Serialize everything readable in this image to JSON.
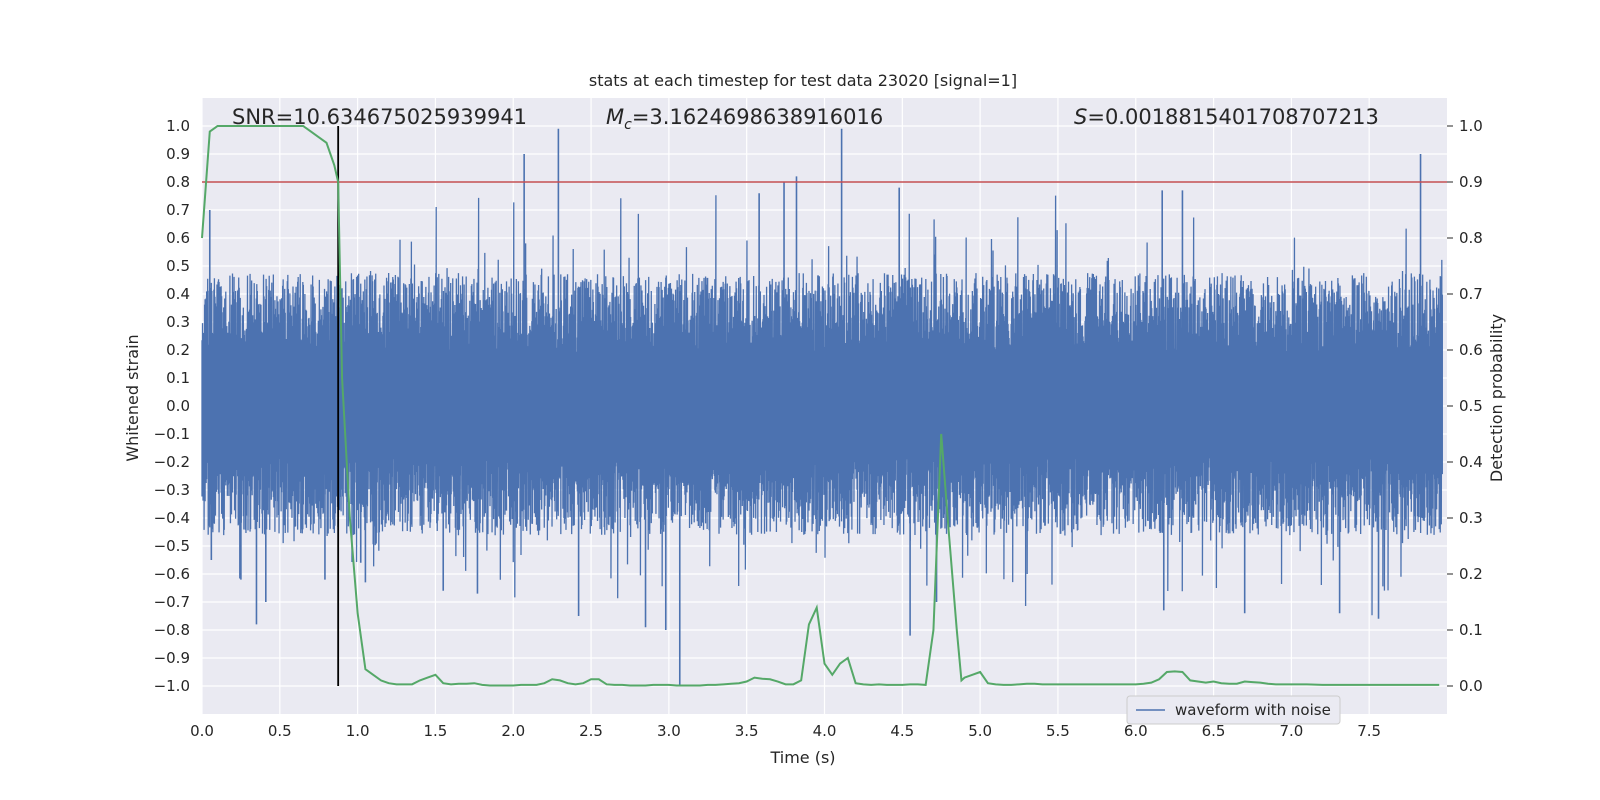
{
  "chart_data": {
    "type": "line",
    "title": "stats at each timestep for test data 23020 [signal=1]",
    "xlabel": "Time (s)",
    "ylabel": "Whitened strain",
    "y2label": "Detection probability",
    "xlim": [
      0.0,
      8.0
    ],
    "ylim": [
      -1.1,
      1.1
    ],
    "y2lim": [
      -0.05,
      1.05
    ],
    "xticks": [
      0.0,
      0.5,
      1.0,
      1.5,
      2.0,
      2.5,
      3.0,
      3.5,
      4.0,
      4.5,
      5.0,
      5.5,
      6.0,
      6.5,
      7.0,
      7.5
    ],
    "xtick_labels": [
      "0.0",
      "0.5",
      "1.0",
      "1.5",
      "2.0",
      "2.5",
      "3.0",
      "3.5",
      "4.0",
      "4.5",
      "5.0",
      "5.5",
      "6.0",
      "6.5",
      "7.0",
      "7.5"
    ],
    "yticks": [
      1.0,
      0.9,
      0.8,
      0.7,
      0.6,
      0.5,
      0.4,
      0.3,
      0.2,
      0.1,
      0.0,
      -0.1,
      -0.2,
      -0.3,
      -0.4,
      -0.5,
      -0.6,
      -0.7,
      -0.8,
      -0.9,
      -1.0
    ],
    "ytick_labels": [
      "1.0",
      "0.9",
      "0.8",
      "0.7",
      "0.6",
      "0.5",
      "0.4",
      "0.3",
      "0.2",
      "0.1",
      "0.0",
      "−0.1",
      "−0.2",
      "−0.3",
      "−0.4",
      "−0.5",
      "−0.6",
      "−0.7",
      "−0.8",
      "−0.9",
      "−1.0"
    ],
    "y2ticks": [
      1.0,
      0.9,
      0.8,
      0.7,
      0.6,
      0.5,
      0.4,
      0.3,
      0.2,
      0.1,
      0.0
    ],
    "y2tick_labels": [
      "1.0",
      "0.9",
      "0.8",
      "0.7",
      "0.6",
      "0.5",
      "0.4",
      "0.3",
      "0.2",
      "0.1",
      "0.0"
    ],
    "annotations": {
      "snr": "SNR=10.634675025939941",
      "mc_symbol": "M",
      "mc_subscript": "c",
      "mc_value": "=3.1624698638916016",
      "s_symbol": "S",
      "s_value": "=0.0018815401708707213"
    },
    "threshold": {
      "y2": 0.9,
      "color": "#c44e52"
    },
    "marker_line": {
      "x": 0.875,
      "y_range": [
        -1.0,
        1.0
      ],
      "color": "#000000"
    },
    "waveform": {
      "name": "waveform with noise",
      "color": "#4c72b0",
      "samples": 2400,
      "envelope_pos": 0.38,
      "envelope_neg": -0.37,
      "spikes": [
        {
          "x": 0.05,
          "y": 0.7
        },
        {
          "x": 0.06,
          "y": -0.55
        },
        {
          "x": 0.25,
          "y": -0.62
        },
        {
          "x": 0.35,
          "y": -0.78
        },
        {
          "x": 0.41,
          "y": -0.7
        },
        {
          "x": 0.79,
          "y": -0.62
        },
        {
          "x": 1.05,
          "y": -0.63
        },
        {
          "x": 1.55,
          "y": -0.66
        },
        {
          "x": 1.77,
          "y": -0.67
        },
        {
          "x": 2.07,
          "y": 0.9
        },
        {
          "x": 2.29,
          "y": 0.99
        },
        {
          "x": 2.42,
          "y": -0.75
        },
        {
          "x": 2.85,
          "y": -0.79
        },
        {
          "x": 2.98,
          "y": -0.8
        },
        {
          "x": 3.07,
          "y": -1.0
        },
        {
          "x": 3.58,
          "y": 0.76
        },
        {
          "x": 3.74,
          "y": 0.8
        },
        {
          "x": 3.82,
          "y": 0.82
        },
        {
          "x": 4.11,
          "y": 0.99
        },
        {
          "x": 4.48,
          "y": 0.78
        },
        {
          "x": 4.55,
          "y": -0.82
        },
        {
          "x": 4.72,
          "y": -0.7
        },
        {
          "x": 6.17,
          "y": 0.77
        },
        {
          "x": 6.3,
          "y": 0.77
        },
        {
          "x": 6.18,
          "y": -0.73
        },
        {
          "x": 6.7,
          "y": -0.74
        },
        {
          "x": 7.31,
          "y": -0.74
        },
        {
          "x": 7.56,
          "y": -0.76
        },
        {
          "x": 7.83,
          "y": 0.9
        },
        {
          "x": 1.02,
          "y": -0.56
        }
      ]
    },
    "probability": {
      "name": "detection probability",
      "color": "#55a868",
      "x": [
        0.0,
        0.05,
        0.1,
        0.15,
        0.2,
        0.25,
        0.3,
        0.35,
        0.4,
        0.45,
        0.5,
        0.55,
        0.6,
        0.65,
        0.7,
        0.75,
        0.8,
        0.85,
        0.875,
        0.9,
        0.95,
        1.0,
        1.05,
        1.1,
        1.15,
        1.2,
        1.25,
        1.3,
        1.35,
        1.4,
        1.45,
        1.5,
        1.55,
        1.6,
        1.65,
        1.7,
        1.75,
        1.8,
        1.85,
        1.9,
        1.95,
        2.0,
        2.05,
        2.1,
        2.15,
        2.2,
        2.25,
        2.3,
        2.35,
        2.4,
        2.45,
        2.5,
        2.55,
        2.6,
        2.65,
        2.7,
        2.75,
        2.8,
        2.85,
        2.9,
        2.95,
        3.0,
        3.05,
        3.1,
        3.15,
        3.2,
        3.25,
        3.3,
        3.35,
        3.4,
        3.45,
        3.5,
        3.55,
        3.6,
        3.65,
        3.7,
        3.75,
        3.8,
        3.85,
        3.9,
        3.95,
        4.0,
        4.05,
        4.1,
        4.15,
        4.2,
        4.25,
        4.3,
        4.35,
        4.4,
        4.45,
        4.5,
        4.55,
        4.6,
        4.65,
        4.7,
        4.75,
        4.8,
        4.85,
        4.88,
        4.9,
        4.95,
        5.0,
        5.05,
        5.1,
        5.15,
        5.2,
        5.25,
        5.3,
        5.35,
        5.4,
        5.45,
        5.5,
        5.6,
        5.7,
        5.8,
        5.9,
        6.0,
        6.05,
        6.1,
        6.15,
        6.2,
        6.25,
        6.3,
        6.35,
        6.4,
        6.45,
        6.5,
        6.55,
        6.6,
        6.65,
        6.7,
        6.75,
        6.8,
        6.85,
        6.9,
        6.95,
        7.0,
        7.1,
        7.2,
        7.3,
        7.4,
        7.5,
        7.6,
        7.7,
        7.8,
        7.95
      ],
      "y": [
        0.8,
        0.99,
        1.0,
        1.0,
        1.0,
        1.0,
        1.0,
        1.0,
        1.0,
        1.0,
        1.0,
        1.0,
        1.0,
        1.0,
        0.99,
        0.98,
        0.97,
        0.93,
        0.9,
        0.55,
        0.3,
        0.13,
        0.03,
        0.02,
        0.01,
        0.005,
        0.003,
        0.003,
        0.003,
        0.01,
        0.015,
        0.02,
        0.005,
        0.003,
        0.004,
        0.004,
        0.005,
        0.002,
        0.001,
        0.001,
        0.001,
        0.001,
        0.002,
        0.002,
        0.002,
        0.005,
        0.012,
        0.01,
        0.005,
        0.003,
        0.005,
        0.012,
        0.012,
        0.003,
        0.002,
        0.002,
        0.001,
        0.001,
        0.001,
        0.002,
        0.002,
        0.002,
        0.001,
        0.001,
        0.001,
        0.001,
        0.002,
        0.002,
        0.003,
        0.004,
        0.005,
        0.008,
        0.015,
        0.013,
        0.012,
        0.008,
        0.003,
        0.003,
        0.01,
        0.11,
        0.14,
        0.04,
        0.02,
        0.04,
        0.05,
        0.005,
        0.003,
        0.002,
        0.003,
        0.002,
        0.002,
        0.002,
        0.003,
        0.003,
        0.002,
        0.1,
        0.45,
        0.27,
        0.1,
        0.01,
        0.015,
        0.02,
        0.025,
        0.005,
        0.003,
        0.002,
        0.002,
        0.003,
        0.004,
        0.004,
        0.003,
        0.003,
        0.003,
        0.003,
        0.003,
        0.003,
        0.003,
        0.003,
        0.004,
        0.006,
        0.012,
        0.025,
        0.026,
        0.025,
        0.01,
        0.008,
        0.006,
        0.008,
        0.005,
        0.004,
        0.004,
        0.008,
        0.007,
        0.006,
        0.004,
        0.003,
        0.003,
        0.003,
        0.003,
        0.002,
        0.002,
        0.002,
        0.002,
        0.002,
        0.002,
        0.002,
        0.002
      ]
    },
    "legend": {
      "entries": [
        "waveform with noise"
      ],
      "loc": "lower right"
    },
    "grid": true,
    "style": {
      "facecolor": "#eaeaf2",
      "gridcolor": "#ffffff"
    }
  }
}
